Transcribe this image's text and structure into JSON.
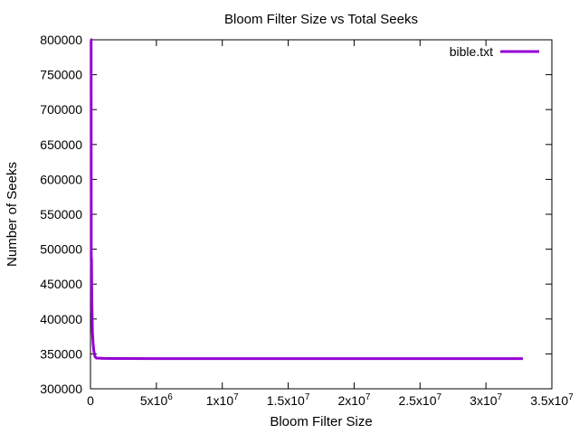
{
  "chart_data": {
    "type": "line",
    "title": "Bloom Filter Size vs Total Seeks",
    "xlabel": "Bloom Filter Size",
    "ylabel": "Number of Seeks",
    "xlim": [
      0,
      35000000
    ],
    "ylim": [
      300000,
      800000
    ],
    "x_ticks": [
      {
        "value": 0,
        "base": "0",
        "exp": ""
      },
      {
        "value": 5000000,
        "base": "5x10",
        "exp": "6"
      },
      {
        "value": 10000000,
        "base": "1x10",
        "exp": "7"
      },
      {
        "value": 15000000,
        "base": "1.5x10",
        "exp": "7"
      },
      {
        "value": 20000000,
        "base": "2x10",
        "exp": "7"
      },
      {
        "value": 25000000,
        "base": "2.5x10",
        "exp": "7"
      },
      {
        "value": 30000000,
        "base": "3x10",
        "exp": "7"
      },
      {
        "value": 35000000,
        "base": "3.5x10",
        "exp": "7"
      }
    ],
    "y_ticks": [
      300000,
      350000,
      400000,
      450000,
      500000,
      550000,
      600000,
      650000,
      700000,
      750000,
      800000
    ],
    "y_tick_labels": [
      "300000",
      "350000",
      "400000",
      "450000",
      "500000",
      "550000",
      "600000",
      "650000",
      "700000",
      "750000",
      "800000"
    ],
    "grid": false,
    "legend_position": "top-right",
    "series": [
      {
        "name": "bible.txt",
        "color": "#9400d3",
        "points": [
          [
            0,
            800000
          ],
          [
            50000,
            800000
          ],
          [
            60000,
            485000
          ],
          [
            80000,
            485000
          ],
          [
            100000,
            430000
          ],
          [
            150000,
            380000
          ],
          [
            200000,
            365000
          ],
          [
            250000,
            355000
          ],
          [
            300000,
            350000
          ],
          [
            350000,
            346000
          ],
          [
            450000,
            344000
          ],
          [
            1000000,
            343500
          ],
          [
            5000000,
            343300
          ],
          [
            15000000,
            343200
          ],
          [
            25000000,
            343200
          ],
          [
            32800000,
            343200
          ]
        ]
      }
    ]
  }
}
